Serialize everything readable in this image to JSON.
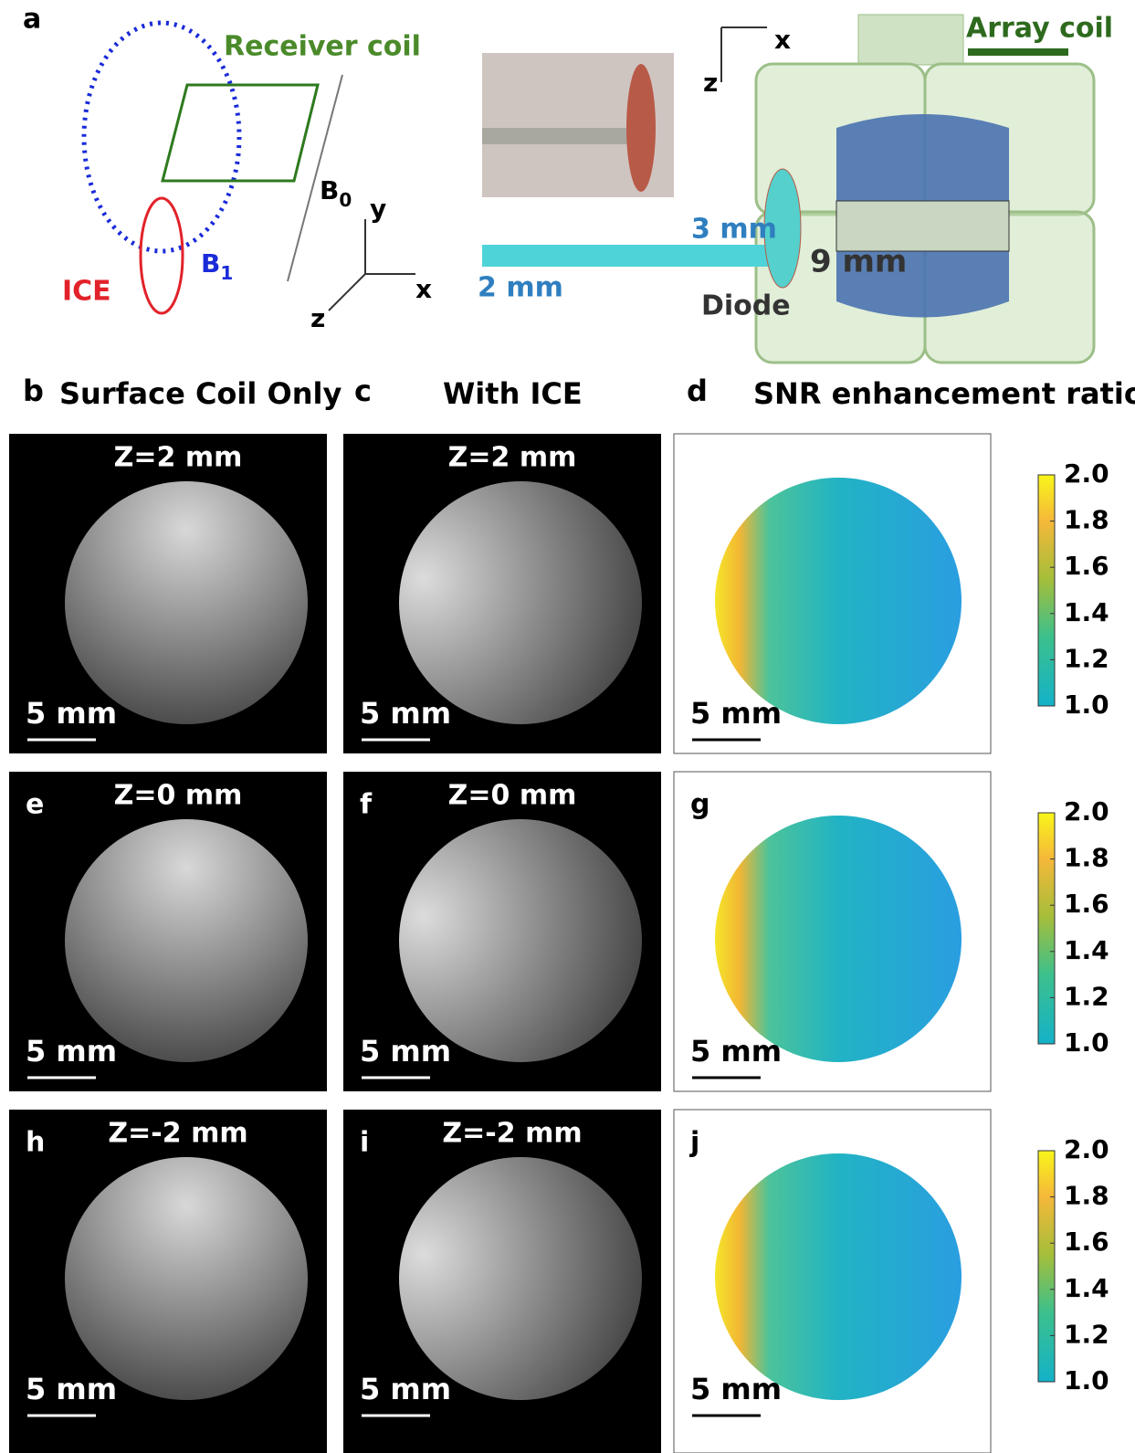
{
  "panel_a": {
    "label": "a",
    "receiver_coil": "Receiver coil",
    "b0": "B",
    "b0_sub": "0",
    "b1": "B",
    "b1_sub": "1",
    "ice": "ICE",
    "axes_left": [
      "y",
      "x",
      "z"
    ],
    "axes_right": [
      "x",
      "z"
    ],
    "array_coil": "Array coil",
    "dim_3mm": "3 mm",
    "dim_9mm": "9 mm",
    "dim_2mm": "2 mm",
    "diode": "Diode"
  },
  "column_titles": [
    {
      "label": "b",
      "title": "Surface Coil Only"
    },
    {
      "label": "c",
      "title": "With ICE"
    },
    {
      "label": "d",
      "title": "SNR enhancement ratio"
    }
  ],
  "rows": [
    {
      "slice": "Z=2 mm",
      "panels": [
        null,
        null,
        null
      ],
      "scale_bar": "5 mm"
    },
    {
      "slice": "Z=0 mm",
      "panels": [
        "e",
        "f",
        "g"
      ],
      "scale_bar": "5 mm"
    },
    {
      "slice": "Z=-2 mm",
      "panels": [
        "h",
        "i",
        "j"
      ],
      "scale_bar": "5 mm"
    }
  ],
  "colorbar": {
    "lim": [
      1,
      2
    ],
    "ticks": [
      {
        "value": 1,
        "label": "1.0"
      },
      {
        "value": 1.2,
        "label": "1.2"
      },
      {
        "value": 1.4,
        "label": "1.4"
      },
      {
        "value": 1.6,
        "label": "1.6"
      },
      {
        "value": 1.8,
        "label": "1.8"
      },
      {
        "value": 2,
        "label": "2.0"
      }
    ]
  }
}
